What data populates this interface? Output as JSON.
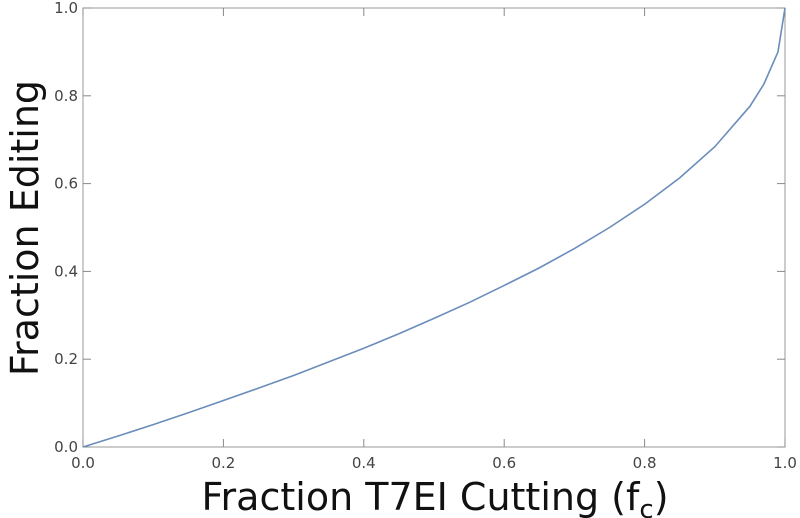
{
  "chart_data": {
    "type": "line",
    "x_label": {
      "text": "Fraction T7EI Cutting (f",
      "subscript": "c",
      "suffix": ")"
    },
    "y_label": "Fraction Editing",
    "x": [
      0,
      0.05,
      0.1,
      0.15,
      0.2,
      0.25,
      0.3,
      0.35,
      0.4,
      0.45,
      0.5,
      0.55,
      0.6,
      0.65,
      0.7,
      0.75,
      0.8,
      0.85,
      0.9,
      0.95,
      0.97,
      0.99,
      1.0
    ],
    "series": [
      {
        "color": "#6a8dbb",
        "values": [
          0,
          0.025,
          0.051,
          0.078,
          0.106,
          0.134,
          0.163,
          0.194,
          0.225,
          0.258,
          0.293,
          0.329,
          0.368,
          0.408,
          0.452,
          0.5,
          0.553,
          0.613,
          0.684,
          0.776,
          0.827,
          0.9,
          1.0
        ]
      }
    ],
    "xlim": [
      0,
      1
    ],
    "ylim": [
      0,
      1
    ],
    "xticks": [
      {
        "value": 0,
        "label": "0.0"
      },
      0.2,
      0.4,
      0.6,
      0.8,
      {
        "value": 1,
        "label": "1.0"
      }
    ],
    "yticks": [
      {
        "value": 0,
        "label": "0.0"
      },
      0.2,
      0.4,
      0.6,
      0.8,
      {
        "value": 1,
        "label": "1.0"
      }
    ],
    "grid": false
  }
}
